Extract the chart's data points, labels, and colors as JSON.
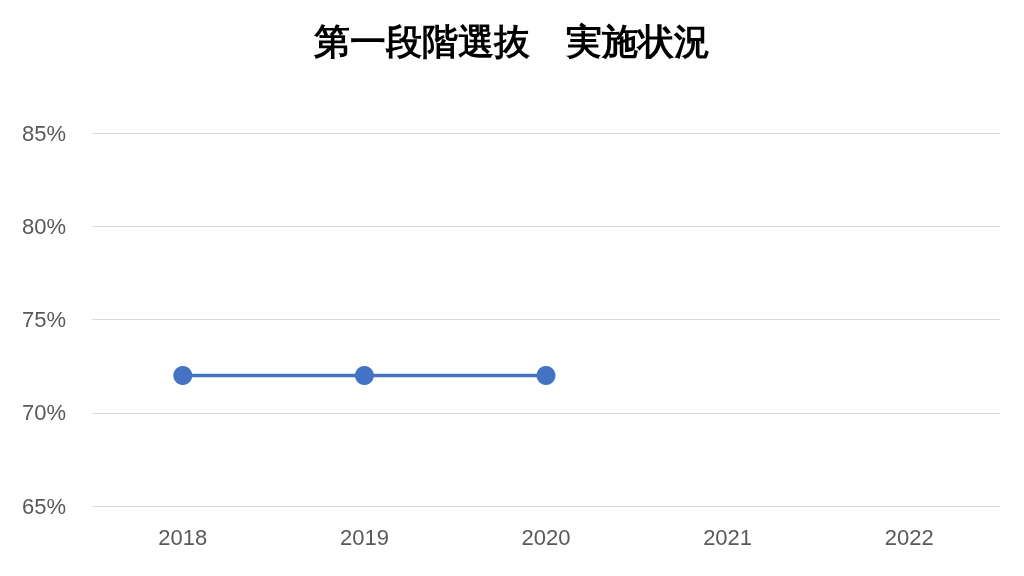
{
  "chart_data": {
    "type": "line",
    "title": "第一段階選抜　実施状況",
    "categories": [
      "2018",
      "2019",
      "2020",
      "2021",
      "2022"
    ],
    "series": [
      {
        "color": "#4472c4",
        "values": [
          72,
          72,
          72,
          null,
          null
        ]
      }
    ],
    "ylim": [
      65,
      85
    ],
    "yticks": [
      {
        "value": 65,
        "label": "65%"
      },
      {
        "value": 70,
        "label": "70%"
      },
      {
        "value": 75,
        "label": "75%"
      },
      {
        "value": 80,
        "label": "80%"
      },
      {
        "value": 85,
        "label": "85%"
      }
    ],
    "grid": "y",
    "marker": "circle",
    "line_style": "solid"
  }
}
